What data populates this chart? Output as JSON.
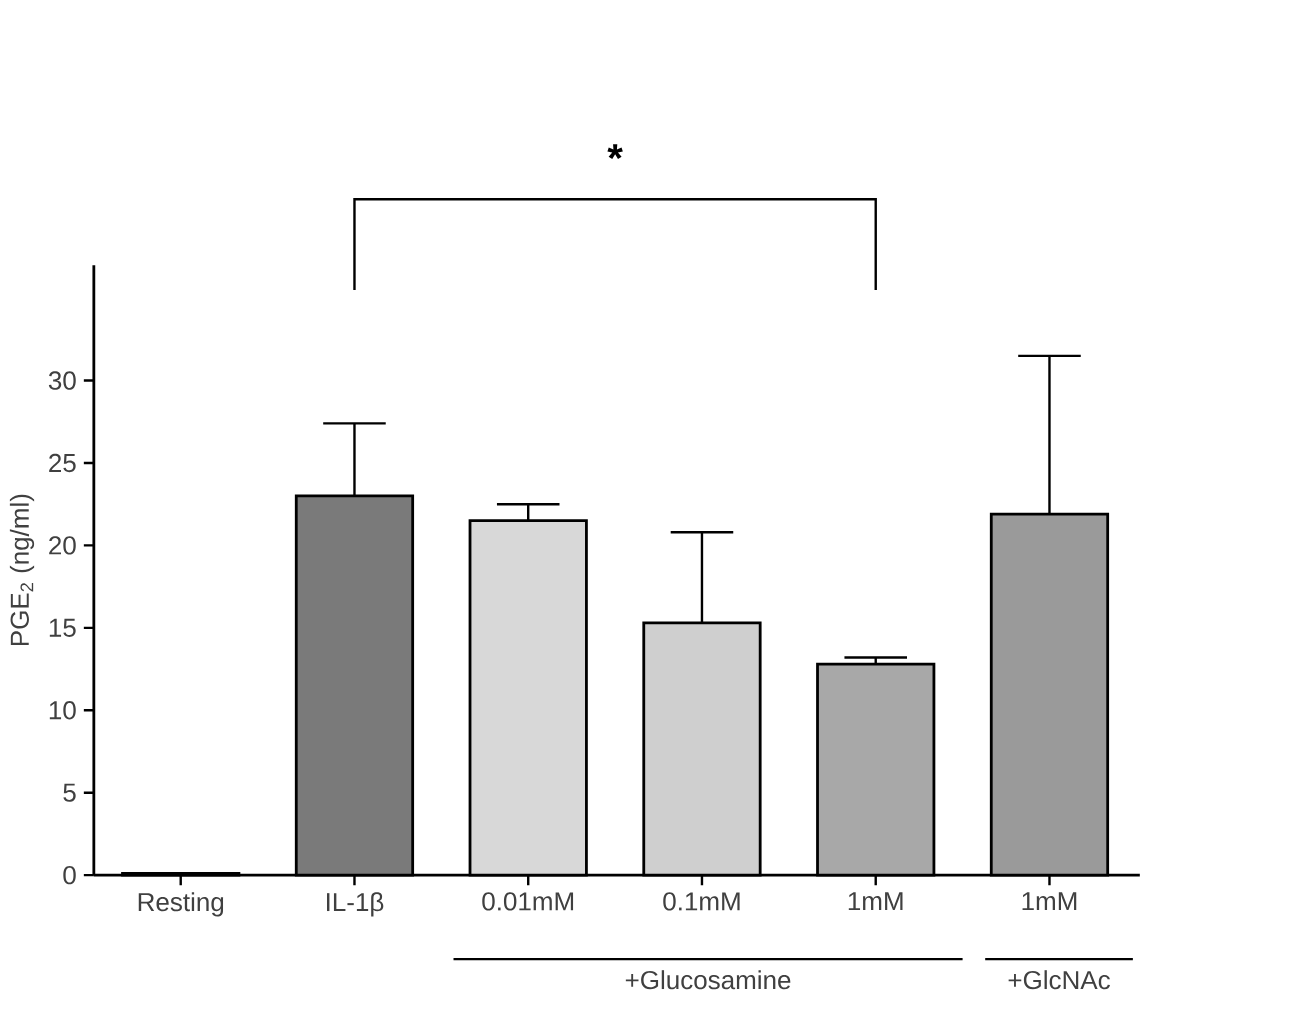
{
  "chart_data": {
    "type": "bar",
    "ylabel": "PGE$_{2}$ (ng/ml)",
    "categories": [
      "Resting",
      "IL-1β",
      "0.01mM",
      "0.1mM",
      "1mM",
      "1mM"
    ],
    "values": [
      0.1,
      23.0,
      21.5,
      15.3,
      12.8,
      21.9
    ],
    "errors": [
      null,
      [
        23.0,
        27.4
      ],
      [
        21.5,
        22.5
      ],
      [
        15.3,
        20.8
      ],
      [
        12.8,
        13.2
      ],
      [
        21.9,
        31.5
      ]
    ],
    "colors": [
      "#ffffff",
      "#7a7a7a",
      "#d8d8d8",
      "#cfcfcf",
      "#a8a8a8",
      "#9a9a9a"
    ],
    "ylim": [
      0,
      37
    ],
    "yticks": [
      0,
      5,
      10,
      15,
      20,
      25,
      30
    ],
    "grid": false,
    "annotations": [
      "*",
      "+Glucosamine",
      "+GlcNAc"
    ]
  }
}
